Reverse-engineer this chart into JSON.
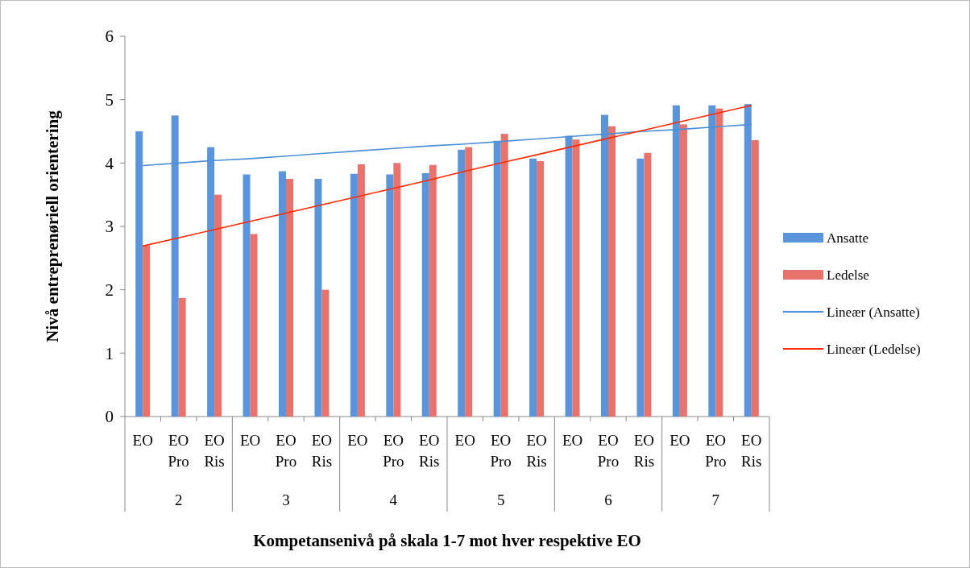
{
  "chart_data": {
    "type": "bar",
    "xlabel": "Kompetansenivå på skala 1-7 mot hver respektive EO",
    "ylabel": "Nivå entreprenøriell orientering",
    "categories": [
      "EO",
      "EO Pro",
      "EO Ris",
      "EO",
      "EO Pro",
      "EO Ris",
      "EO",
      "EO Pro",
      "EO Ris",
      "EO",
      "EO Pro",
      "EO Ris",
      "EO",
      "EO Pro",
      "EO Ris",
      "EO",
      "EO Pro",
      "EO Ris"
    ],
    "annotations": [
      "2",
      "3",
      "4",
      "5",
      "6",
      "7"
    ],
    "series": [
      {
        "name": "Ansatte",
        "color": "#5a95dc",
        "values": [
          4.5,
          4.75,
          4.25,
          3.82,
          3.87,
          3.75,
          3.83,
          3.82,
          3.84,
          4.21,
          4.35,
          4.07,
          4.43,
          4.76,
          4.07,
          4.91,
          4.91,
          4.93
        ]
      },
      {
        "name": "Ledelse",
        "color": "#e8736d",
        "values": [
          2.7,
          1.87,
          3.5,
          2.88,
          3.75,
          2.0,
          3.98,
          4.0,
          3.97,
          4.25,
          4.46,
          4.03,
          4.37,
          4.58,
          4.16,
          4.61,
          4.86,
          4.36
        ]
      },
      {
        "name": "Lineær (Ansatte)",
        "type": "line",
        "color": "#4a8fd8",
        "values": [
          3.96,
          4.0,
          4.04,
          4.07,
          4.11,
          4.15,
          4.19,
          4.23,
          4.27,
          4.3,
          4.34,
          4.38,
          4.42,
          4.46,
          4.5,
          4.53,
          4.57,
          4.61
        ]
      },
      {
        "name": "Lineær (Ledelse)",
        "type": "line",
        "color": "#ff2a00",
        "values": [
          2.69,
          2.82,
          2.95,
          3.08,
          3.21,
          3.34,
          3.47,
          3.6,
          3.73,
          3.87,
          4.0,
          4.13,
          4.26,
          4.39,
          4.52,
          4.65,
          4.78,
          4.91
        ]
      }
    ],
    "ylim": [
      0,
      6
    ],
    "yticks": [
      0,
      1,
      2,
      3,
      4,
      5,
      6
    ],
    "legend": "right"
  }
}
